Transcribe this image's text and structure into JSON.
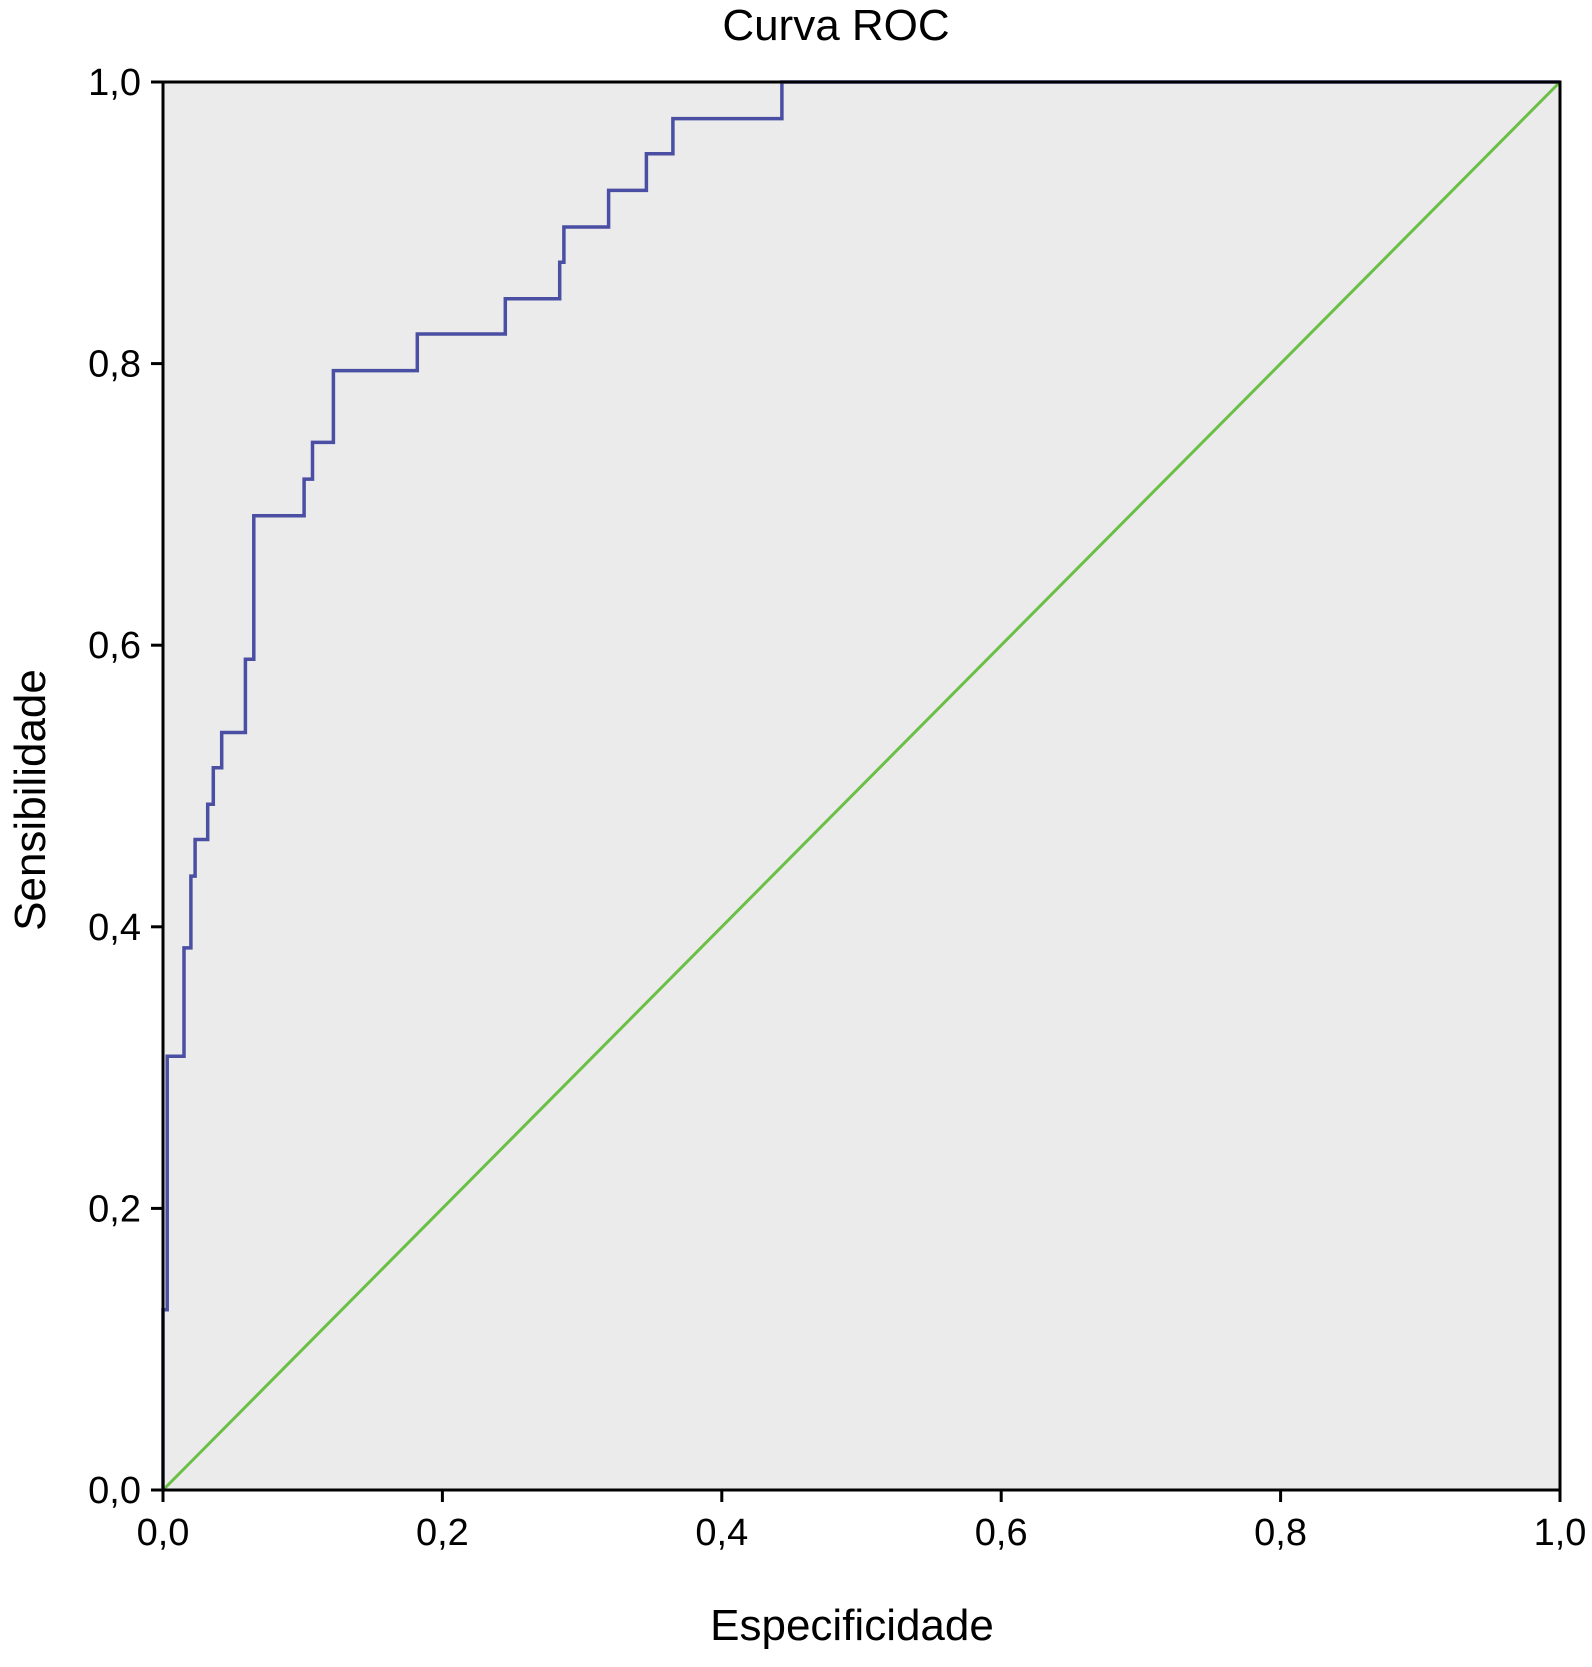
{
  "chart_data": {
    "type": "line",
    "title": "Curva ROC",
    "xlabel": "Especificidade",
    "ylabel": "Sensibilidade",
    "xlim": [
      0,
      1
    ],
    "ylim": [
      0,
      1
    ],
    "x_ticks": [
      0,
      0.2,
      0.4,
      0.6,
      0.8,
      1.0
    ],
    "y_ticks": [
      0,
      0.2,
      0.4,
      0.6,
      0.8,
      1.0
    ],
    "x_tick_labels": [
      "0,0",
      "0,2",
      "0,4",
      "0,6",
      "0,8",
      "1,0"
    ],
    "y_tick_labels": [
      "0,0",
      "0,2",
      "0,4",
      "0,6",
      "0,8",
      "1,0"
    ],
    "grid": false,
    "background_color": "#ebebeb",
    "series": [
      {
        "color": "#4a4fa3",
        "step": true,
        "x": [
          0,
          0,
          0.003,
          0.003,
          0.015,
          0.015,
          0.02,
          0.02,
          0.023,
          0.023,
          0.032,
          0.032,
          0.036,
          0.036,
          0.042,
          0.042,
          0.059,
          0.059,
          0.065,
          0.065,
          0.101,
          0.101,
          0.107,
          0.107,
          0.122,
          0.122,
          0.182,
          0.182,
          0.245,
          0.245,
          0.284,
          0.284,
          0.287,
          0.287,
          0.319,
          0.319,
          0.346,
          0.346,
          0.365,
          0.365,
          0.443,
          0.443,
          1.0
        ],
        "y": [
          0,
          0.128,
          0.128,
          0.308,
          0.308,
          0.385,
          0.385,
          0.436,
          0.436,
          0.462,
          0.462,
          0.487,
          0.487,
          0.513,
          0.513,
          0.538,
          0.538,
          0.59,
          0.59,
          0.692,
          0.692,
          0.718,
          0.718,
          0.744,
          0.744,
          0.795,
          0.795,
          0.821,
          0.821,
          0.846,
          0.846,
          0.872,
          0.872,
          0.897,
          0.897,
          0.923,
          0.923,
          0.949,
          0.949,
          0.974,
          0.974,
          1.0,
          1.0
        ]
      },
      {
        "color": "#6abf45",
        "step": false,
        "x": [
          0,
          1
        ],
        "y": [
          0,
          1
        ]
      }
    ]
  }
}
